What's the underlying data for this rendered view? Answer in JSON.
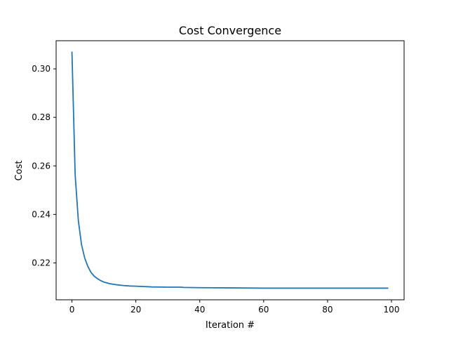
{
  "chart_data": {
    "type": "line",
    "title": "Cost Convergence",
    "xlabel": "Iteration #",
    "ylabel": "Cost",
    "xlim": [
      -4.95,
      103.95
    ],
    "ylim": [
      0.2048,
      0.3116
    ],
    "x_ticks": [
      0,
      20,
      40,
      60,
      80,
      100
    ],
    "x_tick_labels": [
      "0",
      "20",
      "40",
      "60",
      "80",
      "100"
    ],
    "y_ticks": [
      0.22,
      0.24,
      0.26,
      0.28,
      0.3
    ],
    "y_tick_labels": [
      "0.22",
      "0.24",
      "0.26",
      "0.28",
      "0.30"
    ],
    "grid": false,
    "line_color": "#1f77b4",
    "series": [
      {
        "x": [
          0,
          1,
          2,
          3,
          4,
          5,
          6,
          7,
          8,
          9,
          10,
          12,
          14,
          16,
          18,
          20,
          25,
          30,
          34,
          35,
          40,
          50,
          60,
          70,
          80,
          90,
          99
        ],
        "values": [
          0.3071,
          0.2565,
          0.2375,
          0.2275,
          0.222,
          0.2185,
          0.216,
          0.2145,
          0.2135,
          0.2127,
          0.2121,
          0.2114,
          0.211,
          0.2107,
          0.2105,
          0.2104,
          0.2101,
          0.21,
          0.21,
          0.2099,
          0.2098,
          0.2097,
          0.2096,
          0.2096,
          0.2096,
          0.2096,
          0.2096
        ]
      }
    ]
  }
}
